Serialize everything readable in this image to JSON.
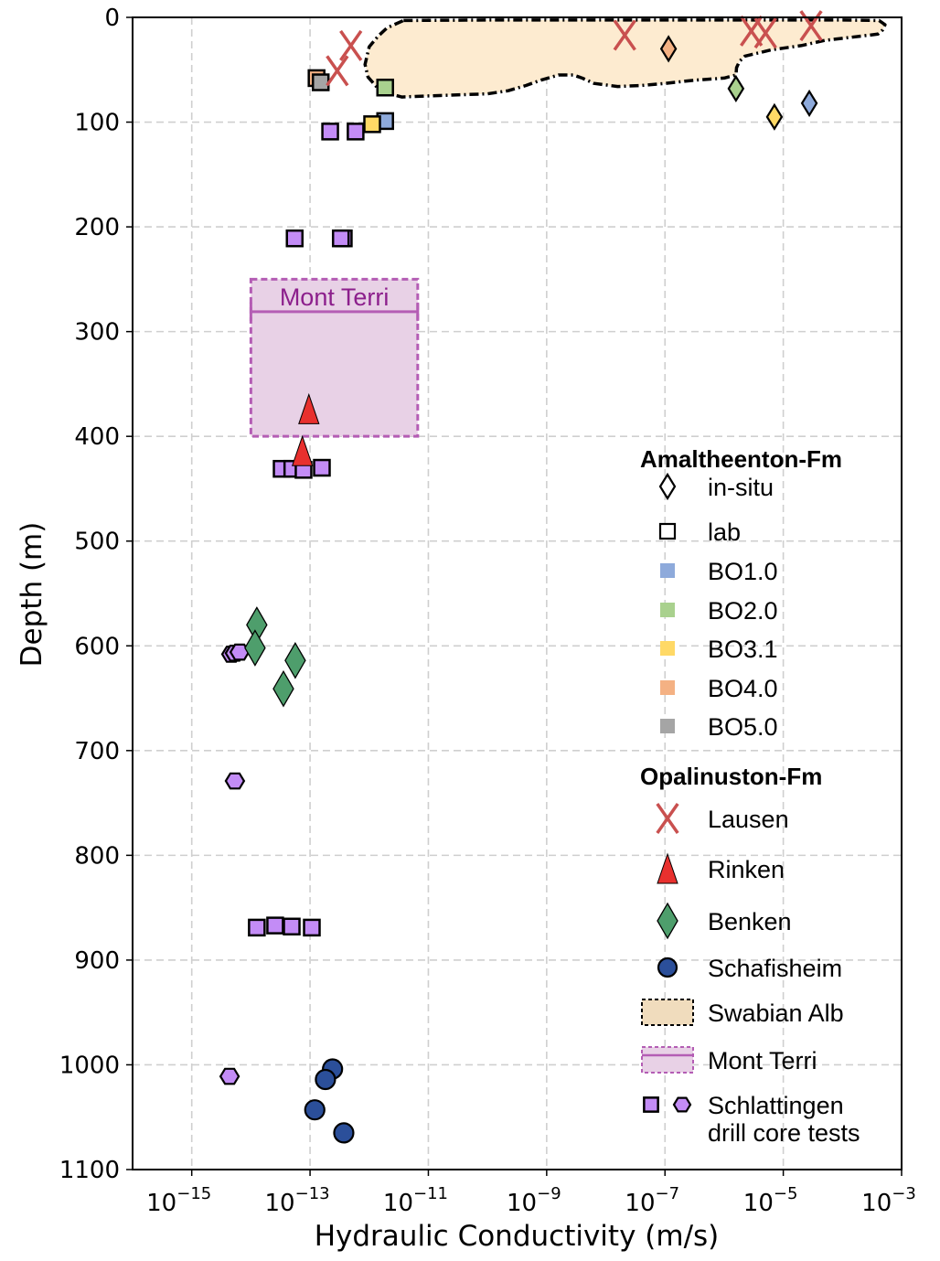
{
  "chart_data": {
    "type": "scatter",
    "xlabel": "Hydraulic Conductivity (m/s)",
    "ylabel": "Depth (m)",
    "xscale": "log",
    "xlim_log10": [
      -16,
      -3
    ],
    "ylim": [
      1100,
      0
    ],
    "y_inverted": true,
    "grid": true,
    "x_ticks": [
      {
        "exp": -15,
        "label": "10",
        "sup": "−15"
      },
      {
        "exp": -13,
        "label": "10",
        "sup": "−13"
      },
      {
        "exp": -11,
        "label": "10",
        "sup": "−11"
      },
      {
        "exp": -9,
        "label": "10",
        "sup": "−9"
      },
      {
        "exp": -7,
        "label": "10",
        "sup": "−7"
      },
      {
        "exp": -5,
        "label": "10",
        "sup": "−5"
      },
      {
        "exp": -3,
        "label": "10",
        "sup": "−3"
      }
    ],
    "y_ticks": [
      0,
      100,
      200,
      300,
      400,
      500,
      600,
      700,
      800,
      900,
      1000,
      1100
    ],
    "colors": {
      "BO1.0": "#8eaadb",
      "BO2.0": "#a9d18e",
      "BO3.1": "#ffd966",
      "BO4.0": "#f4b183",
      "BO5.0": "#a5a5a5",
      "Lausen": "#c9504f",
      "Rinken": "#e8302e",
      "Benken": "#4e9e6c",
      "Schafisheim": "#2b4f9a",
      "Schlattingen": "#c38cf6",
      "SwabianFill": "#fdebd0",
      "MontTerriFill": "#e8d1e6",
      "MontTerriEdge": "#b45db4"
    },
    "series": [
      {
        "name": "Amaltheenton in-situ",
        "marker": "diamond",
        "points": [
          {
            "log10K": -6.94,
            "depth": 30,
            "group": "BO4.0"
          },
          {
            "log10K": -5.8,
            "depth": 68,
            "group": "BO2.0"
          },
          {
            "log10K": -5.15,
            "depth": 95,
            "group": "BO3.1"
          },
          {
            "log10K": -4.56,
            "depth": 82,
            "group": "BO1.0"
          }
        ]
      },
      {
        "name": "Amaltheenton lab",
        "marker": "square",
        "points": [
          {
            "log10K": -12.89,
            "depth": 58,
            "group": "BO4.0"
          },
          {
            "log10K": -12.82,
            "depth": 62,
            "group": "BO5.0"
          },
          {
            "log10K": -11.73,
            "depth": 67,
            "group": "BO2.0"
          },
          {
            "log10K": -11.73,
            "depth": 99,
            "group": "BO1.0"
          },
          {
            "log10K": -11.95,
            "depth": 102,
            "group": "BO3.1"
          }
        ]
      },
      {
        "name": "Lausen",
        "marker": "x",
        "points": [
          {
            "log10K": -12.31,
            "depth": 27
          },
          {
            "log10K": -12.54,
            "depth": 51
          },
          {
            "log10K": -7.68,
            "depth": 17
          },
          {
            "log10K": -5.54,
            "depth": 13
          },
          {
            "log10K": -5.3,
            "depth": 15
          },
          {
            "log10K": -4.53,
            "depth": 8
          }
        ]
      },
      {
        "name": "Rinken",
        "marker": "triangle",
        "points": [
          {
            "log10K": -13.02,
            "depth": 374
          },
          {
            "log10K": -13.13,
            "depth": 414
          }
        ]
      },
      {
        "name": "Benken",
        "marker": "diamond-large",
        "points": [
          {
            "log10K": -13.9,
            "depth": 580
          },
          {
            "log10K": -13.93,
            "depth": 602
          },
          {
            "log10K": -13.25,
            "depth": 614
          },
          {
            "log10K": -13.45,
            "depth": 641
          }
        ]
      },
      {
        "name": "Schafisheim",
        "marker": "circle",
        "points": [
          {
            "log10K": -12.62,
            "depth": 1004
          },
          {
            "log10K": -12.74,
            "depth": 1014
          },
          {
            "log10K": -12.92,
            "depth": 1043
          },
          {
            "log10K": -12.43,
            "depth": 1065
          }
        ]
      },
      {
        "name": "Schlattingen squares",
        "marker": "square",
        "points": [
          {
            "log10K": -12.66,
            "depth": 109
          },
          {
            "log10K": -12.23,
            "depth": 109
          },
          {
            "log10K": -13.26,
            "depth": 211
          },
          {
            "log10K": -12.43,
            "depth": 211
          },
          {
            "log10K": -12.48,
            "depth": 211
          },
          {
            "log10K": -13.48,
            "depth": 431
          },
          {
            "log10K": -13.3,
            "depth": 431
          },
          {
            "log10K": -12.8,
            "depth": 430
          },
          {
            "log10K": -13.11,
            "depth": 432
          },
          {
            "log10K": -13.9,
            "depth": 869
          },
          {
            "log10K": -13.59,
            "depth": 867
          },
          {
            "log10K": -13.31,
            "depth": 868
          },
          {
            "log10K": -12.97,
            "depth": 869
          }
        ]
      },
      {
        "name": "Schlattingen hexagons",
        "marker": "hexagon",
        "points": [
          {
            "log10K": -14.33,
            "depth": 608
          },
          {
            "log10K": -14.27,
            "depth": 607
          },
          {
            "log10K": -14.19,
            "depth": 606
          },
          {
            "log10K": -14.27,
            "depth": 729
          },
          {
            "log10K": -14.36,
            "depth": 1011
          }
        ]
      }
    ],
    "regions": {
      "swabian_alb": {
        "label": "Swabian Alb",
        "outline": [
          [
            -11.42,
            3
          ],
          [
            -10.0,
            2.5
          ],
          [
            -8,
            2.5
          ],
          [
            -6,
            2.5
          ],
          [
            -4,
            2.5
          ],
          [
            -3.38,
            3
          ],
          [
            -3.28,
            7
          ],
          [
            -3.32,
            12
          ],
          [
            -3.4,
            16
          ],
          [
            -3.7,
            18
          ],
          [
            -4.3,
            22
          ],
          [
            -4.7,
            27
          ],
          [
            -5.2,
            31
          ],
          [
            -5.65,
            37
          ],
          [
            -5.74,
            42
          ],
          [
            -5.79,
            48
          ],
          [
            -5.8,
            55
          ],
          [
            -6.0,
            58
          ],
          [
            -6.5,
            60
          ],
          [
            -7.0,
            63
          ],
          [
            -7.4,
            65
          ],
          [
            -7.8,
            66
          ],
          [
            -8.2,
            63
          ],
          [
            -8.4,
            58
          ],
          [
            -8.55,
            55
          ],
          [
            -8.8,
            55
          ],
          [
            -9.1,
            60
          ],
          [
            -9.35,
            65
          ],
          [
            -9.65,
            70
          ],
          [
            -10.0,
            73
          ],
          [
            -11.0,
            75
          ],
          [
            -11.45,
            76
          ],
          [
            -11.65,
            73
          ],
          [
            -11.85,
            68
          ],
          [
            -12.02,
            57
          ],
          [
            -12.07,
            45
          ],
          [
            -12.0,
            28
          ],
          [
            -11.85,
            18
          ],
          [
            -11.7,
            10
          ]
        ]
      },
      "mont_terri": {
        "label": "Mont Terri",
        "log10K_range": [
          -14.0,
          -11.18
        ],
        "depth_range": [
          250,
          400
        ],
        "line_depth": 281
      }
    },
    "legend": {
      "placement": "right",
      "sections": [
        {
          "heading": "Amaltheenton-Fm",
          "items": [
            {
              "label": "in-situ",
              "symbol": "diamond-open"
            },
            {
              "label": "lab",
              "symbol": "square-open"
            },
            {
              "label": "BO1.0",
              "symbol": "patch",
              "color": "#8eaadb"
            },
            {
              "label": "BO2.0",
              "symbol": "patch",
              "color": "#a9d18e"
            },
            {
              "label": "BO3.1",
              "symbol": "patch",
              "color": "#ffd966"
            },
            {
              "label": "BO4.0",
              "symbol": "patch",
              "color": "#f4b183"
            },
            {
              "label": "BO5.0",
              "symbol": "patch",
              "color": "#a5a5a5"
            }
          ]
        },
        {
          "heading": "Opalinuston-Fm",
          "items": [
            {
              "label": "Lausen",
              "symbol": "x"
            },
            {
              "label": "Rinken",
              "symbol": "triangle"
            },
            {
              "label": "Benken",
              "symbol": "diamond-large"
            },
            {
              "label": "Schafisheim",
              "symbol": "circle"
            },
            {
              "label": "Swabian Alb",
              "symbol": "swabian-box"
            },
            {
              "label": "Mont Terri",
              "symbol": "montterri-box"
            },
            {
              "label": "Schlattingen",
              "label2": "drill core tests",
              "symbol": "square-hexagon"
            }
          ]
        }
      ]
    }
  }
}
